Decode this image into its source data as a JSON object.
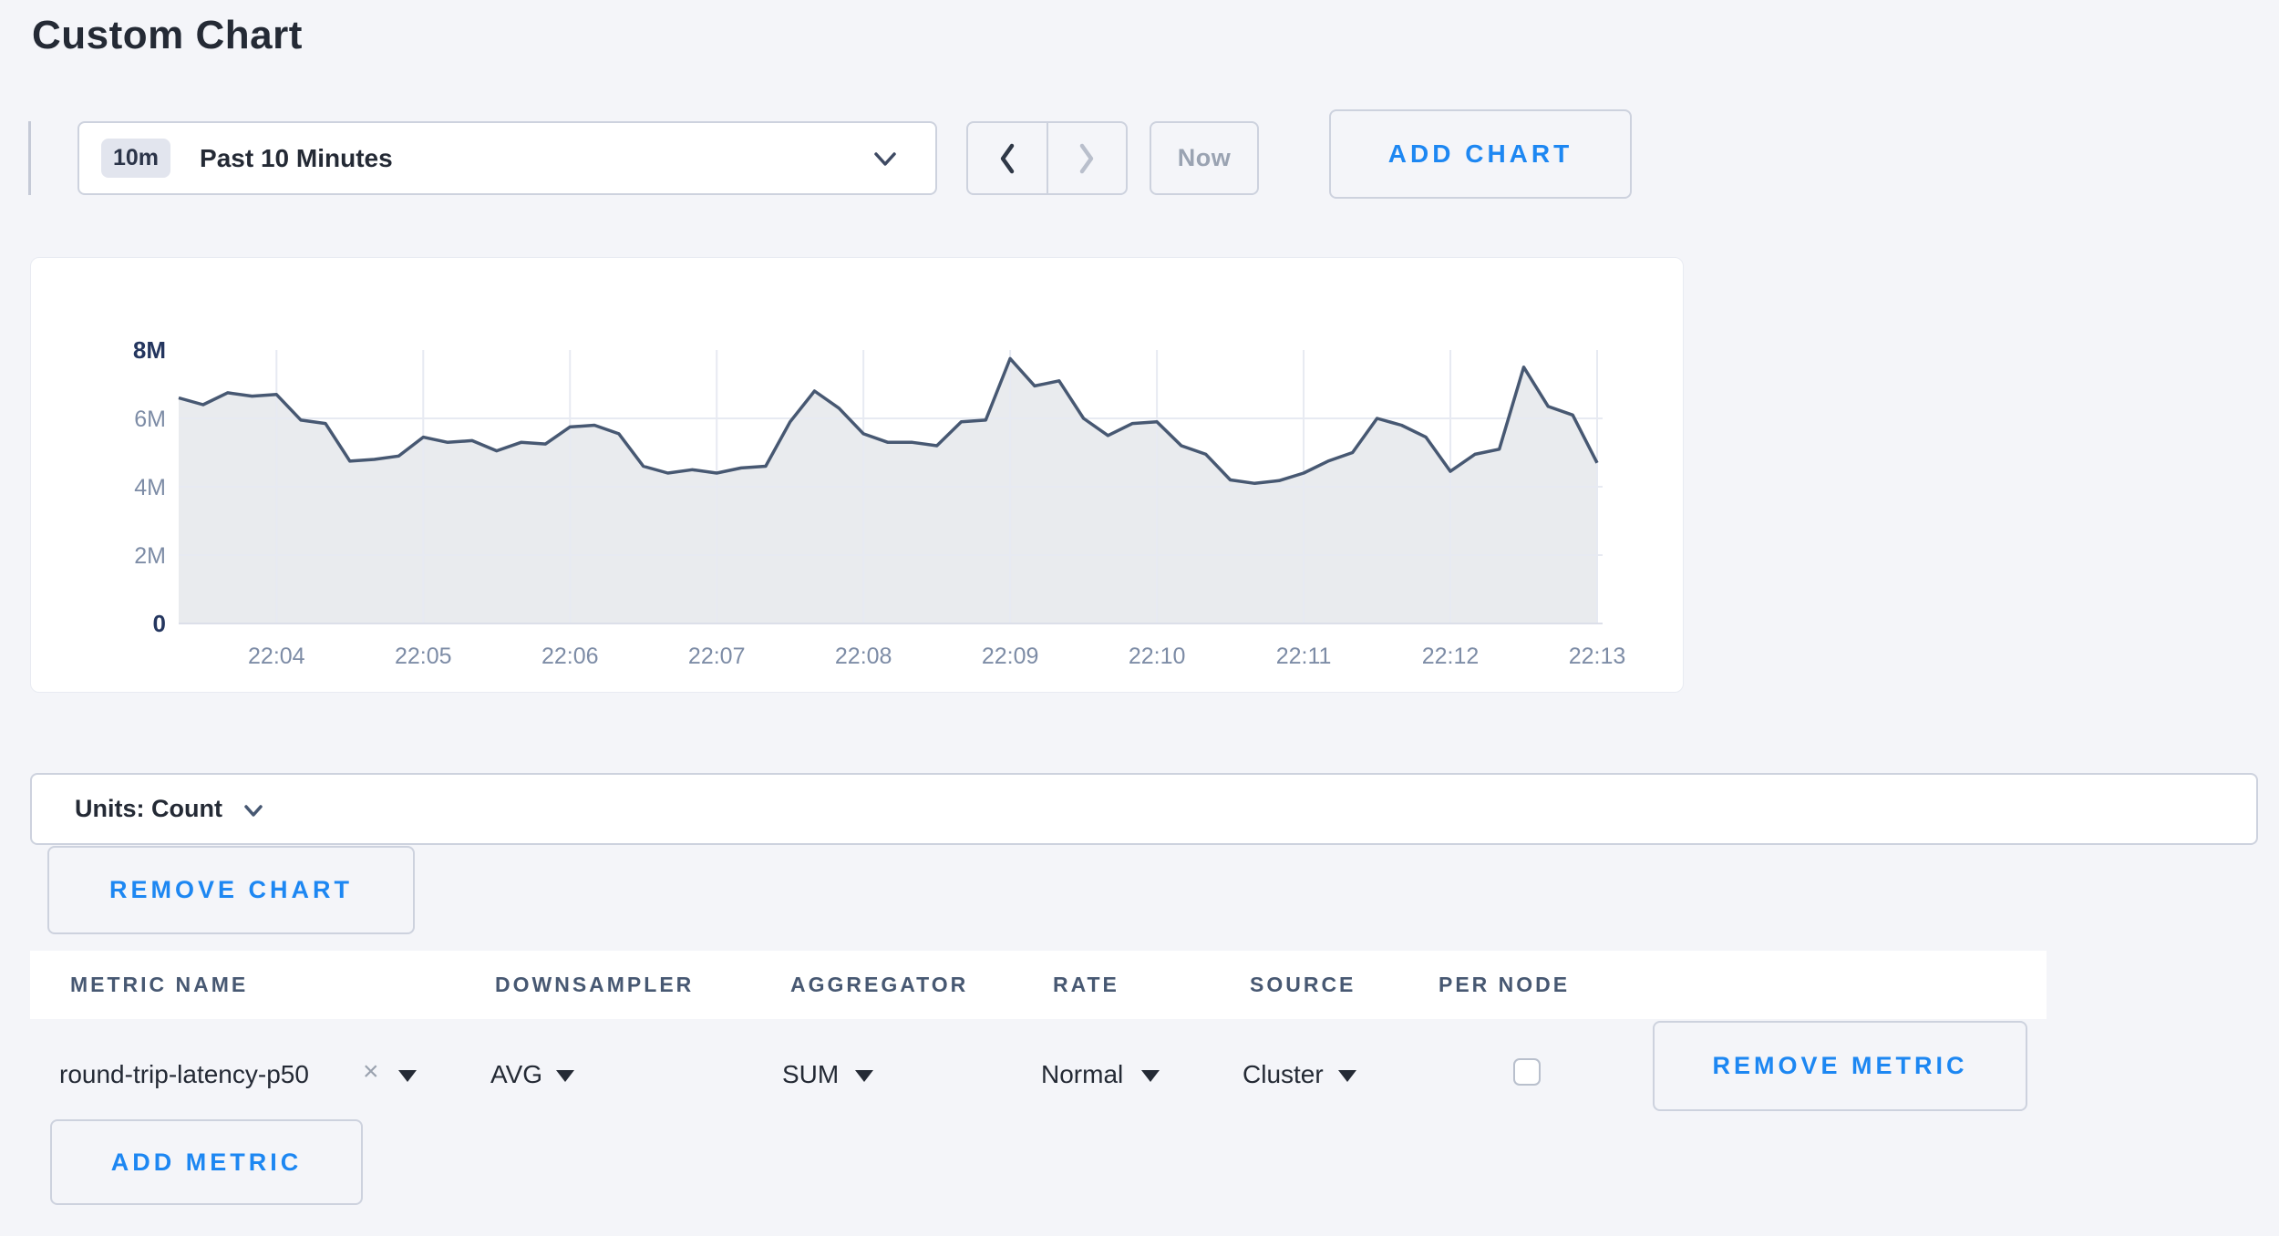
{
  "page": {
    "title": "Custom Chart"
  },
  "toolbar": {
    "range_badge": "10m",
    "range_label": "Past 10 Minutes",
    "now_label": "Now",
    "add_chart_label": "ADD CHART"
  },
  "colors": {
    "accent_blue": "#1d87f2",
    "page_background": "#f4f5f9",
    "dark_text": "#242a35",
    "slate_text": "#475872",
    "muted_label": "#7d8ca6",
    "emphasis_axis_label": "#24365f",
    "border": "#cdd2de",
    "grid_line": "#e7eaf2",
    "axis_line": "#dcdfe9",
    "series_line": "#475872",
    "series_fill": "rgba(71,88,114,0.12)"
  },
  "chart_data": {
    "type": "area",
    "title": "",
    "xlabel": "",
    "ylabel": "",
    "unit": "Count",
    "y_unit_suffix": "M",
    "ylim_millions": [
      0,
      8
    ],
    "grid": true,
    "legend": "none",
    "x_ticks": [
      "22:04",
      "22:05",
      "22:06",
      "22:07",
      "22:08",
      "22:09",
      "22:10",
      "22:11",
      "22:12",
      "22:13"
    ],
    "x_tick_indices": [
      4,
      10,
      16,
      22,
      28,
      34,
      40,
      46,
      52,
      58
    ],
    "y_ticks": [
      {
        "value": 8,
        "label": "8M",
        "emphasis": true
      },
      {
        "value": 6,
        "label": "6M",
        "emphasis": false
      },
      {
        "value": 4,
        "label": "4M",
        "emphasis": false
      },
      {
        "value": 2,
        "label": "2M",
        "emphasis": false
      },
      {
        "value": 0,
        "label": "0",
        "emphasis": true
      }
    ],
    "y_grid_millions": [
      2,
      4,
      6
    ],
    "sample_interval_seconds": 10,
    "values_millions": [
      6.6,
      6.4,
      6.75,
      6.65,
      6.7,
      5.95,
      5.85,
      4.75,
      4.8,
      4.9,
      5.45,
      5.3,
      5.35,
      5.05,
      5.3,
      5.25,
      5.75,
      5.8,
      5.55,
      4.6,
      4.4,
      4.5,
      4.4,
      4.55,
      4.6,
      5.9,
      6.8,
      6.3,
      5.55,
      5.3,
      5.3,
      5.2,
      5.9,
      5.95,
      7.75,
      6.95,
      7.1,
      6.0,
      5.5,
      5.85,
      5.9,
      5.2,
      4.95,
      4.2,
      4.1,
      4.18,
      4.4,
      4.75,
      5.0,
      6.0,
      5.8,
      5.45,
      4.45,
      4.95,
      5.1,
      7.5,
      6.35,
      6.1,
      4.7
    ]
  },
  "units_bar": {
    "label": "Units: Count"
  },
  "chart_actions": {
    "remove_chart_label": "REMOVE CHART",
    "add_metric_label": "ADD METRIC"
  },
  "icons": {
    "dropdown_caret": "▼",
    "remove_tag": "×"
  },
  "metrics_table": {
    "columns": [
      "METRIC NAME",
      "DOWNSAMPLER",
      "AGGREGATOR",
      "RATE",
      "SOURCE",
      "PER NODE"
    ],
    "rows": [
      {
        "metric_name": "round-trip-latency-p50",
        "downsampler": "AVG",
        "aggregator": "SUM",
        "rate": "Normal",
        "source": "Cluster",
        "per_node_checked": false,
        "remove_metric_label": "REMOVE METRIC"
      }
    ]
  }
}
